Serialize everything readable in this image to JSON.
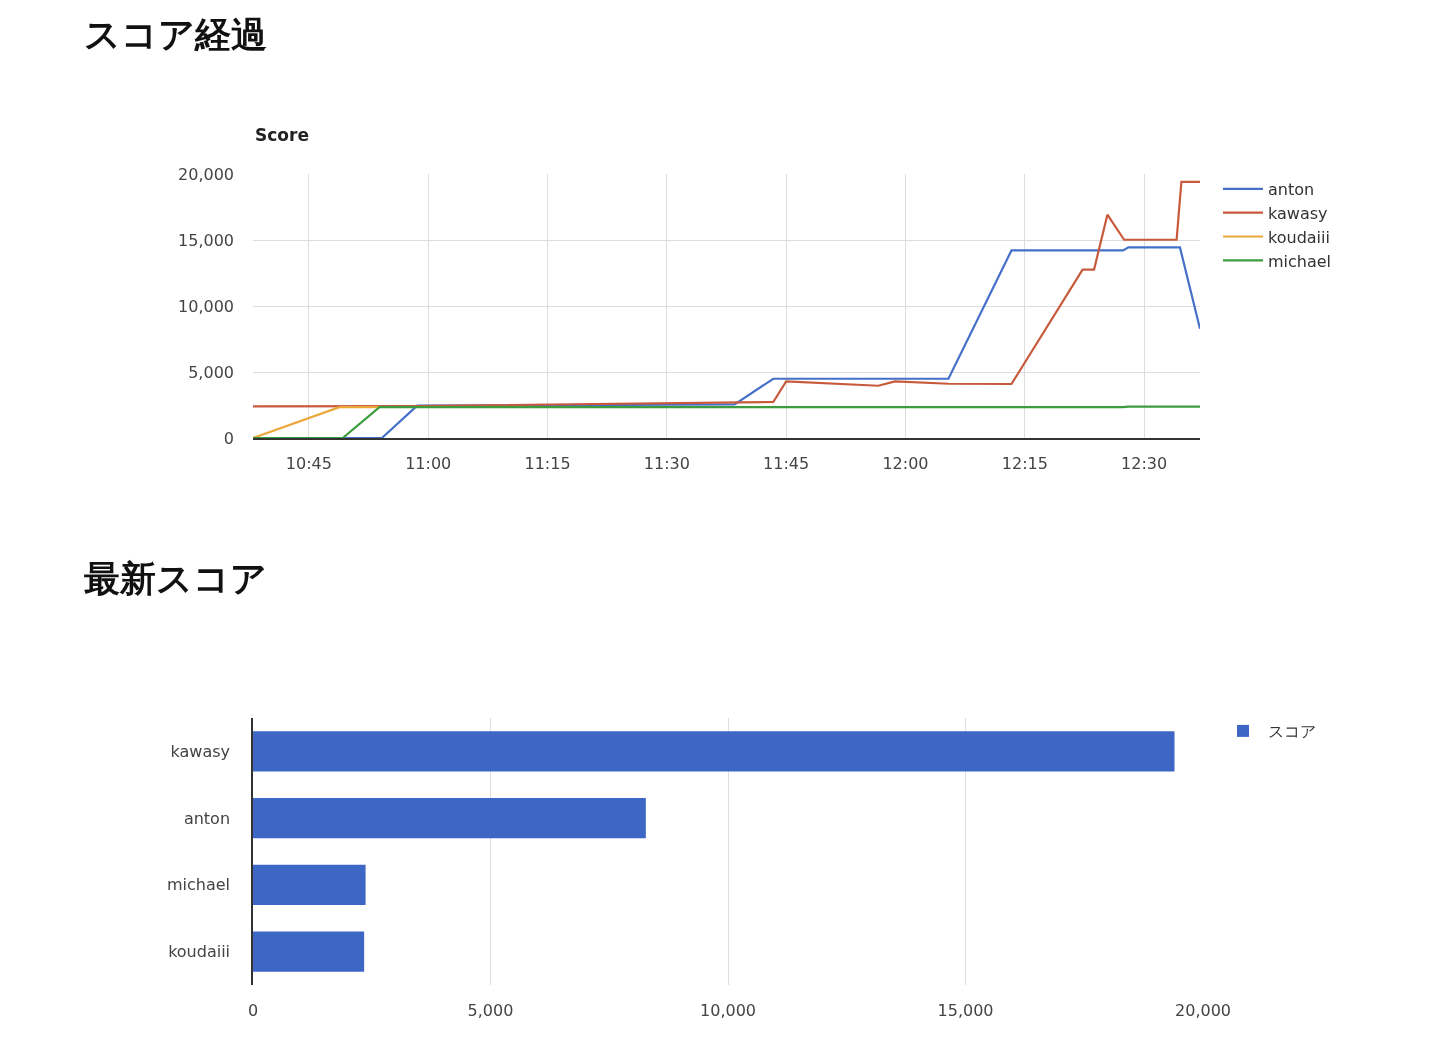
{
  "chart_data": [
    {
      "type": "line",
      "title": "スコア経過",
      "subtitle": "Score",
      "series": [
        {
          "name": "anton",
          "color": "#4470c8",
          "x": [
            10.633,
            10.903,
            10.977,
            11.642,
            11.723,
            12.09,
            12.222,
            12.456,
            12.467,
            12.575,
            12.617
          ],
          "values": [
            0,
            0,
            2450,
            2550,
            4490,
            4490,
            14210,
            14210,
            14440,
            14440,
            8270
          ]
        },
        {
          "name": "kawasy",
          "color": "#c85a3c",
          "x": [
            10.633,
            10.977,
            11.723,
            11.75,
            11.943,
            11.978,
            12.09,
            12.222,
            12.371,
            12.395,
            12.423,
            12.458,
            12.568,
            12.578,
            12.617
          ],
          "values": [
            2400,
            2420,
            2730,
            4290,
            3960,
            4290,
            4110,
            4090,
            12750,
            12750,
            16920,
            15020,
            15020,
            19400,
            19400
          ]
        },
        {
          "name": "koudaiii",
          "color": "#eba83a",
          "x": [
            10.633,
            10.814,
            10.898
          ],
          "values": [
            0,
            2340,
            2340
          ]
        },
        {
          "name": "michael",
          "color": "#3d9c3d",
          "x": [
            10.633,
            10.821,
            10.898,
            12.456,
            12.467,
            12.617
          ],
          "values": [
            0,
            0,
            2340,
            2340,
            2370,
            2370
          ]
        }
      ],
      "xlim": [
        10.633,
        12.617
      ],
      "xticks": [
        {
          "value": 10.75,
          "label": "10:45"
        },
        {
          "value": 11.0,
          "label": "11:00"
        },
        {
          "value": 11.25,
          "label": "11:15"
        },
        {
          "value": 11.5,
          "label": "11:30"
        },
        {
          "value": 11.75,
          "label": "11:45"
        },
        {
          "value": 12.0,
          "label": "12:00"
        },
        {
          "value": 12.25,
          "label": "12:15"
        },
        {
          "value": 12.5,
          "label": "12:30"
        }
      ],
      "ylim": [
        0,
        20000
      ],
      "yticks": [
        0,
        {
          "value": 5000,
          "label": "5,000"
        },
        {
          "value": 10000,
          "label": "10,000"
        },
        {
          "value": 15000,
          "label": "15,000"
        },
        {
          "value": 20000,
          "label": "20,000"
        }
      ],
      "grid": true,
      "legend": "top right",
      "marker": "none",
      "line_style": "solid"
    },
    {
      "type": "bar",
      "orientation": "horizontal",
      "title": "最新スコア",
      "categories": [
        "kawasy",
        "anton",
        "michael",
        "koudaiii"
      ],
      "series": [
        {
          "name": "スコア",
          "color": "#3e66c4",
          "values": [
            19400,
            8270,
            2370,
            2340
          ]
        }
      ],
      "xlim": [
        0,
        20000
      ],
      "xticks": [
        0,
        {
          "value": 5000,
          "label": "5,000"
        },
        {
          "value": 10000,
          "label": "10,000"
        },
        {
          "value": 15000,
          "label": "15,000"
        },
        {
          "value": 20000,
          "label": "20,000"
        }
      ],
      "grid": "x",
      "legend": "top right"
    }
  ]
}
